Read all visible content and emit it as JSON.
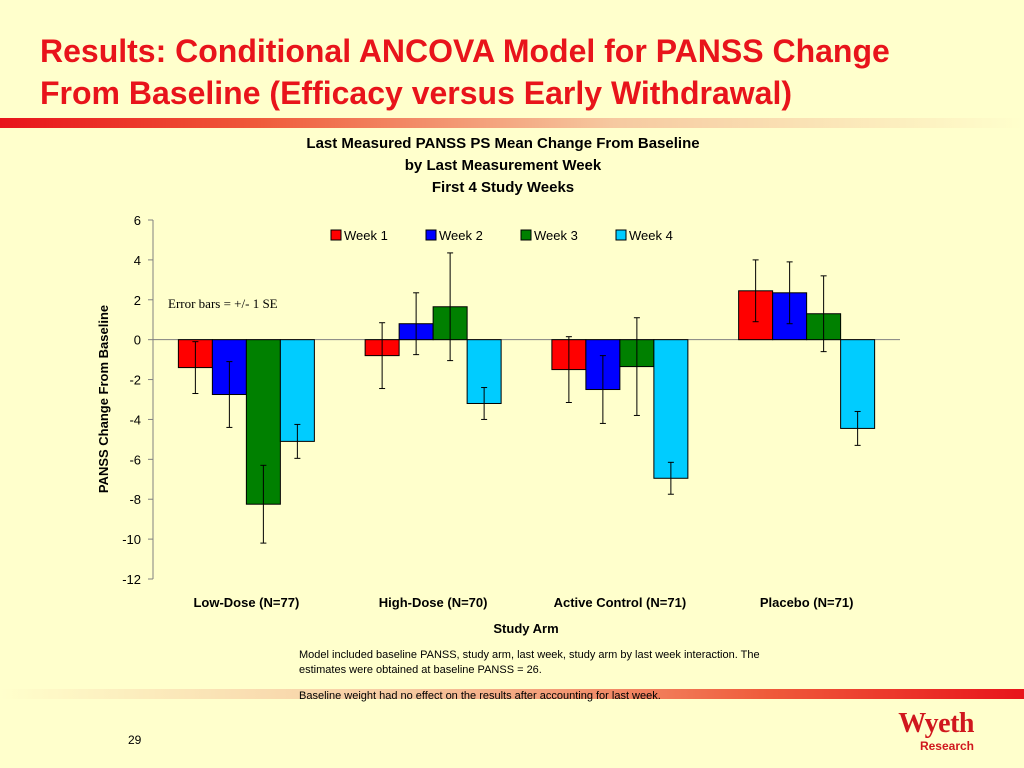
{
  "slide": {
    "title_line1": "Results:  Conditional ANCOVA Model for PANSS Change",
    "title_line2": "From Baseline (Efficacy versus Early Withdrawal)",
    "page_number": "29",
    "footnotes": [
      "Model included baseline PANSS, study arm, last week, study arm by last week interaction.  The estimates were obtained at baseline PANSS = 26.",
      "Baseline weight had no effect on the results after accounting for last week."
    ],
    "logo_main": "Wyeth",
    "logo_sub": "Research",
    "accent_color": "#e8141b"
  },
  "chart_data": {
    "type": "bar",
    "title": [
      "Last Measured PANSS PS Mean Change From Baseline",
      "by Last Measurement Week",
      "First 4 Study Weeks"
    ],
    "xlabel": "Study Arm",
    "ylabel": "PANSS Change From Baseline",
    "ylim": [
      -12,
      6
    ],
    "yticks": [
      6,
      4,
      2,
      0,
      -2,
      -4,
      -6,
      -8,
      -10,
      -12
    ],
    "categories": [
      "Low-Dose (N=77)",
      "High-Dose (N=70)",
      "Active Control (N=71)",
      "Placebo (N=71)"
    ],
    "legend_position": "top-right",
    "annotation": "Error bars = +/- 1 SE",
    "grid": false,
    "series": [
      {
        "name": "Week 1",
        "color": "#ff0000",
        "values": [
          -1.4,
          -0.8,
          -1.5,
          2.45
        ],
        "se": [
          1.3,
          1.65,
          1.65,
          1.55
        ]
      },
      {
        "name": "Week 2",
        "color": "#0000ff",
        "values": [
          -2.75,
          0.8,
          -2.5,
          2.35
        ],
        "se": [
          1.65,
          1.55,
          1.7,
          1.55
        ]
      },
      {
        "name": "Week 3",
        "color": "#008000",
        "values": [
          -8.25,
          1.65,
          -1.35,
          1.3
        ],
        "se": [
          1.95,
          2.7,
          2.45,
          1.9
        ]
      },
      {
        "name": "Week 4",
        "color": "#00ccff",
        "values": [
          -5.1,
          -3.2,
          -6.95,
          -4.45
        ],
        "se": [
          0.85,
          0.8,
          0.8,
          0.85
        ]
      }
    ]
  }
}
